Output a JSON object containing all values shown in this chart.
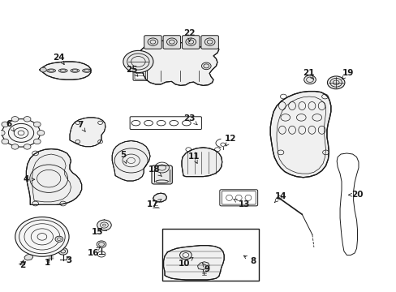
{
  "bg_color": "#ffffff",
  "line_color": "#1a1a1a",
  "fig_width": 4.89,
  "fig_height": 3.6,
  "dpi": 100,
  "lw": 0.7,
  "label_fs": 7.5,
  "labels": {
    "1": [
      0.128,
      0.118,
      0.118,
      0.098
    ],
    "2": [
      0.068,
      0.11,
      0.055,
      0.09
    ],
    "3": [
      0.163,
      0.128,
      0.173,
      0.108
    ],
    "4": [
      0.088,
      0.385,
      0.065,
      0.385
    ],
    "5": [
      0.318,
      0.438,
      0.31,
      0.468
    ],
    "6": [
      0.035,
      0.548,
      0.022,
      0.575
    ],
    "7": [
      0.215,
      0.548,
      0.202,
      0.572
    ],
    "8": [
      0.608,
      0.128,
      0.638,
      0.105
    ],
    "9": [
      0.51,
      0.098,
      0.522,
      0.075
    ],
    "10": [
      0.488,
      0.118,
      0.465,
      0.095
    ],
    "11": [
      0.498,
      0.438,
      0.488,
      0.465
    ],
    "12": [
      0.568,
      0.498,
      0.582,
      0.525
    ],
    "13": [
      0.588,
      0.318,
      0.615,
      0.298
    ],
    "14": [
      0.692,
      0.305,
      0.708,
      0.328
    ],
    "15": [
      0.262,
      0.222,
      0.245,
      0.205
    ],
    "16": [
      0.252,
      0.155,
      0.235,
      0.132
    ],
    "17": [
      0.408,
      0.318,
      0.385,
      0.298
    ],
    "18": [
      0.408,
      0.395,
      0.388,
      0.418
    ],
    "19": [
      0.862,
      0.728,
      0.878,
      0.752
    ],
    "20": [
      0.878,
      0.332,
      0.902,
      0.332
    ],
    "21": [
      0.792,
      0.728,
      0.778,
      0.752
    ],
    "22": [
      0.478,
      0.858,
      0.478,
      0.888
    ],
    "23": [
      0.498,
      0.572,
      0.478,
      0.595
    ],
    "24": [
      0.162,
      0.778,
      0.148,
      0.805
    ],
    "25": [
      0.348,
      0.738,
      0.332,
      0.762
    ]
  }
}
